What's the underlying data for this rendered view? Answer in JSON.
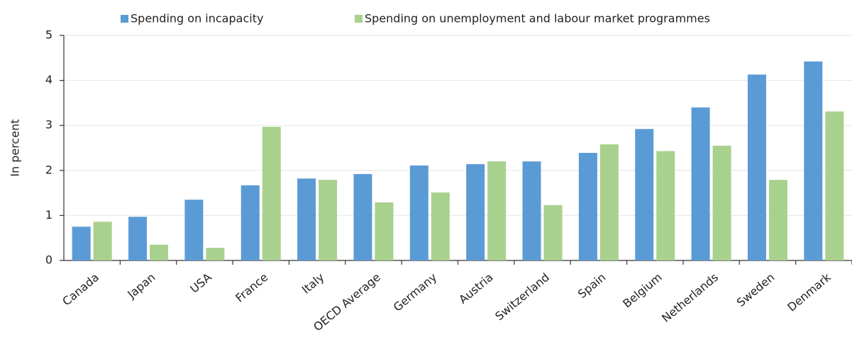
{
  "chart_data": {
    "type": "bar",
    "y_label": "In percent",
    "categories": [
      "Canada",
      "Japan",
      "USA",
      "France",
      "Italy",
      "OECD Average",
      "Germany",
      "Austria",
      "Switzerland",
      "Spain",
      "Belgium",
      "Netherlands",
      "Sweden",
      "Denmark"
    ],
    "series": [
      {
        "name": "Spending on incapacity",
        "color": "#5b9bd5",
        "values": [
          0.75,
          0.97,
          1.35,
          1.67,
          1.82,
          1.92,
          2.11,
          2.14,
          2.2,
          2.39,
          2.92,
          3.4,
          4.13,
          4.42
        ]
      },
      {
        "name": "Spending on unemployment and labour market programmes",
        "color": "#a9d18e",
        "values": [
          0.86,
          0.35,
          0.28,
          2.97,
          1.79,
          1.29,
          1.51,
          2.2,
          1.23,
          2.58,
          2.43,
          2.55,
          1.79,
          3.31
        ]
      }
    ],
    "ylim": [
      0,
      5
    ],
    "yticks": [
      0,
      1,
      2,
      3,
      4,
      5
    ],
    "grid": true,
    "legend": "top"
  }
}
